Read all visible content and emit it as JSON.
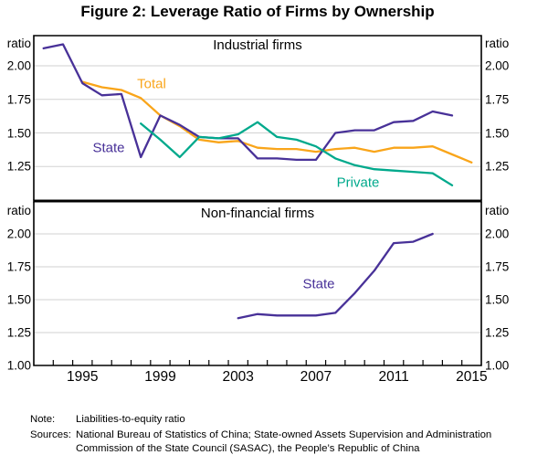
{
  "title": "Figure 2: Leverage Ratio of Firms by Ownership",
  "axis": {
    "ratio_label": "ratio",
    "x_range": [
      1993,
      2016
    ],
    "x_tick_labels": [
      {
        "label": "1995",
        "year": 1995
      },
      {
        "label": "1999",
        "year": 1999
      },
      {
        "label": "2003",
        "year": 2003
      },
      {
        "label": "2007",
        "year": 2007
      },
      {
        "label": "2011",
        "year": 2011
      },
      {
        "label": "2015",
        "year": 2015
      }
    ]
  },
  "chart_data": [
    {
      "type": "line",
      "title": "Industrial firms",
      "ylabel": "ratio",
      "ylim": [
        1.0,
        2.23
      ],
      "grid": true,
      "yticks": [
        {
          "v": 2.0,
          "label": "2.00"
        },
        {
          "v": 1.75,
          "label": "1.75"
        },
        {
          "v": 1.5,
          "label": "1.50"
        },
        {
          "v": 1.25,
          "label": "1.25"
        }
      ],
      "series": [
        {
          "name": "Total",
          "color": "#f9a51a",
          "points": [
            [
              1995,
              1.88
            ],
            [
              1996,
              1.84
            ],
            [
              1997,
              1.82
            ],
            [
              1998,
              1.76
            ],
            [
              1999,
              1.63
            ],
            [
              2000,
              1.55
            ],
            [
              2001,
              1.45
            ],
            [
              2002,
              1.43
            ],
            [
              2003,
              1.44
            ],
            [
              2004,
              1.39
            ],
            [
              2005,
              1.38
            ],
            [
              2006,
              1.38
            ],
            [
              2007,
              1.36
            ],
            [
              2008,
              1.38
            ],
            [
              2009,
              1.39
            ],
            [
              2010,
              1.36
            ],
            [
              2011,
              1.39
            ],
            [
              2012,
              1.39
            ],
            [
              2013,
              1.4
            ],
            [
              2014,
              1.34
            ],
            [
              2015,
              1.28
            ]
          ]
        },
        {
          "name": "State",
          "color": "#483198",
          "points": [
            [
              1993,
              2.13
            ],
            [
              1994,
              2.16
            ],
            [
              1995,
              1.87
            ],
            [
              1996,
              1.78
            ],
            [
              1997,
              1.79
            ],
            [
              1998,
              1.32
            ],
            [
              1999,
              1.63
            ],
            [
              2000,
              1.56
            ],
            [
              2001,
              1.47
            ],
            [
              2002,
              1.46
            ],
            [
              2003,
              1.46
            ],
            [
              2004,
              1.31
            ],
            [
              2005,
              1.31
            ],
            [
              2006,
              1.3
            ],
            [
              2007,
              1.3
            ],
            [
              2008,
              1.5
            ],
            [
              2009,
              1.52
            ],
            [
              2010,
              1.52
            ],
            [
              2011,
              1.58
            ],
            [
              2012,
              1.59
            ],
            [
              2013,
              1.66
            ],
            [
              2014,
              1.63
            ]
          ]
        },
        {
          "name": "Private",
          "color": "#00a98c",
          "points": [
            [
              1998,
              1.57
            ],
            [
              1999,
              1.45
            ],
            [
              2000,
              1.32
            ],
            [
              2001,
              1.47
            ],
            [
              2002,
              1.46
            ],
            [
              2003,
              1.49
            ],
            [
              2004,
              1.58
            ],
            [
              2005,
              1.47
            ],
            [
              2006,
              1.45
            ],
            [
              2007,
              1.4
            ],
            [
              2008,
              1.31
            ],
            [
              2009,
              1.26
            ],
            [
              2010,
              1.23
            ],
            [
              2011,
              1.22
            ],
            [
              2012,
              1.21
            ],
            [
              2013,
              1.2
            ],
            [
              2014,
              1.11
            ]
          ]
        }
      ]
    },
    {
      "type": "line",
      "title": "Non-financial firms",
      "ylabel": "ratio",
      "ylim": [
        1.0,
        2.23
      ],
      "grid": true,
      "yticks": [
        {
          "v": 2.0,
          "label": "2.00"
        },
        {
          "v": 1.75,
          "label": "1.75"
        },
        {
          "v": 1.5,
          "label": "1.50"
        },
        {
          "v": 1.25,
          "label": "1.25"
        },
        {
          "v": 1.0,
          "label": "1.00"
        }
      ],
      "series": [
        {
          "name": "State",
          "color": "#483198",
          "points": [
            [
              2003,
              1.36
            ],
            [
              2004,
              1.39
            ],
            [
              2005,
              1.38
            ],
            [
              2006,
              1.38
            ],
            [
              2007,
              1.38
            ],
            [
              2008,
              1.4
            ],
            [
              2009,
              1.55
            ],
            [
              2010,
              1.72
            ],
            [
              2011,
              1.93
            ],
            [
              2012,
              1.94
            ],
            [
              2013,
              2.0
            ]
          ]
        }
      ]
    }
  ],
  "colors": {
    "gridline": "#d2d2d2",
    "axis": "#000000"
  },
  "footer": {
    "note_label": "Note:",
    "note": "Liabilities-to-equity ratio",
    "sources_label": "Sources:",
    "sources": "National Bureau of Statistics of China; State-owned Assets Supervision and Administration Commission of the State Council (SASAC), the People’s Republic of China"
  }
}
